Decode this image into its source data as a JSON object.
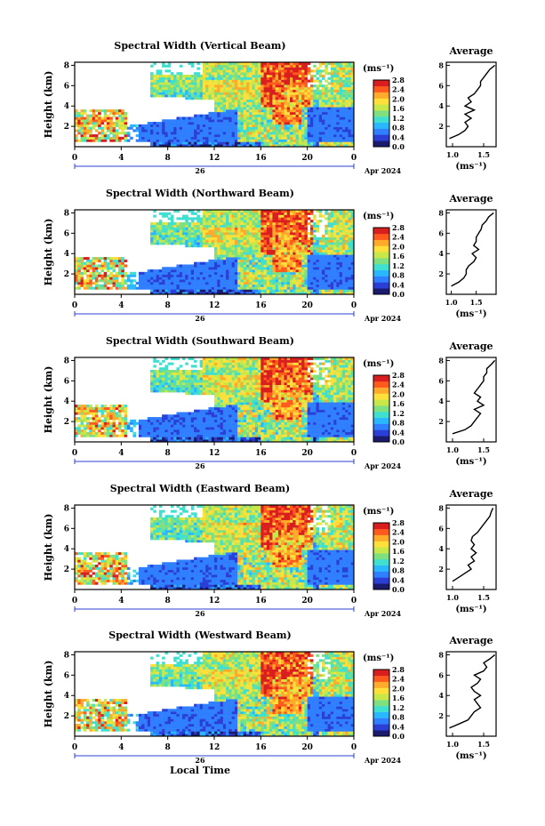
{
  "chart_data": [
    {
      "type": "heatmap",
      "title": "Spectral Width (Vertical Beam)",
      "ylabel": "Height (km)",
      "x_ticks": [
        "0",
        "4",
        "8",
        "12",
        "16",
        "20",
        "0"
      ],
      "date_label": "26",
      "month_label": "Apr 2024",
      "y_ticks": [
        "2",
        "4",
        "6",
        "8"
      ],
      "colorbar": {
        "unit": "(ms⁻¹)",
        "ticks": [
          "0.0",
          "0.4",
          "0.8",
          "1.2",
          "1.6",
          "2.0",
          "2.4",
          "2.8"
        ]
      },
      "profile": {
        "title": "Average",
        "xlabel": "(ms⁻¹)",
        "x_ticks": [
          "1.0",
          "1.5"
        ],
        "y_ticks": [
          "2",
          "4",
          "6",
          "8"
        ],
        "xlim": [
          0.9,
          1.7
        ],
        "heights": [
          0.8,
          1.2,
          1.6,
          2.0,
          2.4,
          2.8,
          3.2,
          3.6,
          4.0,
          4.4,
          4.8,
          5.2,
          5.6,
          6.0,
          6.4,
          6.8,
          7.2,
          7.6,
          8.0
        ],
        "values": [
          0.95,
          1.1,
          1.2,
          1.25,
          1.2,
          1.3,
          1.2,
          1.35,
          1.2,
          1.3,
          1.25,
          1.35,
          1.4,
          1.45,
          1.45,
          1.5,
          1.55,
          1.6,
          1.68
        ]
      }
    },
    {
      "type": "heatmap",
      "title": "Spectral Width (Northward Beam)",
      "ylabel": "Height (km)",
      "x_ticks": [
        "0",
        "4",
        "8",
        "12",
        "16",
        "20",
        "0"
      ],
      "date_label": "26",
      "month_label": "Apr 2024",
      "y_ticks": [
        "2",
        "4",
        "6",
        "8"
      ],
      "colorbar": {
        "unit": "(ms⁻¹)",
        "ticks": [
          "0.0",
          "0.4",
          "0.8",
          "1.2",
          "1.6",
          "2.0",
          "2.4",
          "2.8"
        ]
      },
      "profile": {
        "title": "Average",
        "xlabel": "(ms⁻¹)",
        "x_ticks": [
          "1.0",
          "1.5"
        ],
        "y_ticks": [
          "2",
          "4",
          "6",
          "8"
        ],
        "xlim": [
          0.9,
          1.9
        ],
        "heights": [
          0.8,
          1.2,
          1.6,
          2.0,
          2.4,
          2.8,
          3.2,
          3.6,
          4.0,
          4.4,
          4.8,
          5.2,
          5.6,
          6.0,
          6.4,
          6.8,
          7.2,
          7.6,
          8.0
        ],
        "values": [
          1.0,
          1.15,
          1.25,
          1.3,
          1.3,
          1.35,
          1.45,
          1.5,
          1.42,
          1.55,
          1.45,
          1.5,
          1.5,
          1.55,
          1.6,
          1.62,
          1.7,
          1.75,
          1.85
        ]
      }
    },
    {
      "type": "heatmap",
      "title": "Spectral Width (Southward Beam)",
      "ylabel": "Height (km)",
      "x_ticks": [
        "0",
        "4",
        "8",
        "12",
        "16",
        "20",
        "0"
      ],
      "date_label": "26",
      "month_label": "Apr 2024",
      "y_ticks": [
        "2",
        "4",
        "6",
        "8"
      ],
      "colorbar": {
        "unit": "(ms⁻¹)",
        "ticks": [
          "0.0",
          "0.4",
          "0.8",
          "1.2",
          "1.6",
          "2.0",
          "2.4",
          "2.8"
        ]
      },
      "profile": {
        "title": "Average",
        "xlabel": "(ms⁻¹)",
        "x_ticks": [
          "1.0",
          "1.5"
        ],
        "y_ticks": [
          "2",
          "4",
          "6",
          "8"
        ],
        "xlim": [
          0.9,
          1.7
        ],
        "heights": [
          0.8,
          1.2,
          1.6,
          2.0,
          2.4,
          2.8,
          3.2,
          3.6,
          4.0,
          4.4,
          4.8,
          5.2,
          5.6,
          6.0,
          6.4,
          6.8,
          7.2,
          7.6,
          8.0
        ],
        "values": [
          1.0,
          1.2,
          1.3,
          1.35,
          1.4,
          1.45,
          1.35,
          1.5,
          1.4,
          1.45,
          1.35,
          1.4,
          1.45,
          1.5,
          1.5,
          1.55,
          1.55,
          1.62,
          1.68
        ]
      }
    },
    {
      "type": "heatmap",
      "title": "Spectral Width (Eastward Beam)",
      "ylabel": "Height (km)",
      "x_ticks": [
        "0",
        "4",
        "8",
        "12",
        "16",
        "20",
        "0"
      ],
      "date_label": "26",
      "month_label": "Apr 2024",
      "y_ticks": [
        "2",
        "4",
        "6",
        "8"
      ],
      "colorbar": {
        "unit": "(ms⁻¹)",
        "ticks": [
          "0.0",
          "0.4",
          "0.8",
          "1.2",
          "1.6",
          "2.0",
          "2.4",
          "2.8"
        ]
      },
      "profile": {
        "title": "Average",
        "xlabel": "(ms⁻¹)",
        "x_ticks": [
          "1.0",
          "1.5"
        ],
        "y_ticks": [
          "2",
          "4",
          "6",
          "8"
        ],
        "xlim": [
          0.9,
          1.7
        ],
        "heights": [
          0.8,
          1.2,
          1.6,
          2.0,
          2.4,
          2.8,
          3.2,
          3.6,
          4.0,
          4.4,
          4.8,
          5.2,
          5.6,
          6.0,
          6.4,
          6.8,
          7.2,
          7.6,
          8.0
        ],
        "values": [
          1.0,
          1.1,
          1.2,
          1.3,
          1.25,
          1.35,
          1.3,
          1.38,
          1.3,
          1.35,
          1.3,
          1.32,
          1.4,
          1.45,
          1.5,
          1.55,
          1.6,
          1.62,
          1.65
        ]
      }
    },
    {
      "type": "heatmap",
      "title": "Spectral Width (Westward Beam)",
      "ylabel": "Height (km)",
      "x_ticks": [
        "0",
        "4",
        "8",
        "12",
        "16",
        "20",
        "0"
      ],
      "date_label": "26",
      "month_label": "Apr 2024",
      "xlabel": "Local Time",
      "y_ticks": [
        "2",
        "4",
        "6",
        "8"
      ],
      "colorbar": {
        "unit": "(ms⁻¹)",
        "ticks": [
          "0.0",
          "0.4",
          "0.8",
          "1.2",
          "1.6",
          "2.0",
          "2.4",
          "2.8"
        ]
      },
      "profile": {
        "title": "Average",
        "xlabel": "(ms⁻¹)",
        "x_ticks": [
          "1.0",
          "1.5"
        ],
        "y_ticks": [
          "2",
          "4",
          "6",
          "8"
        ],
        "xlim": [
          0.9,
          1.7
        ],
        "heights": [
          0.8,
          1.2,
          1.6,
          2.0,
          2.4,
          2.8,
          3.2,
          3.6,
          4.0,
          4.4,
          4.8,
          5.2,
          5.6,
          6.0,
          6.4,
          6.8,
          7.2,
          7.6,
          8.0
        ],
        "values": [
          0.95,
          1.1,
          1.25,
          1.3,
          1.35,
          1.45,
          1.4,
          1.35,
          1.45,
          1.35,
          1.3,
          1.4,
          1.45,
          1.35,
          1.5,
          1.55,
          1.5,
          1.6,
          1.68
        ]
      }
    }
  ],
  "colors": {
    "colormap": [
      "#1a1a6e",
      "#2b3fd6",
      "#2f7fff",
      "#29b8ff",
      "#3fe0d0",
      "#7fe07f",
      "#c8e84a",
      "#ffe03a",
      "#ffaa2a",
      "#ff5a1e",
      "#d81e1e"
    ]
  }
}
